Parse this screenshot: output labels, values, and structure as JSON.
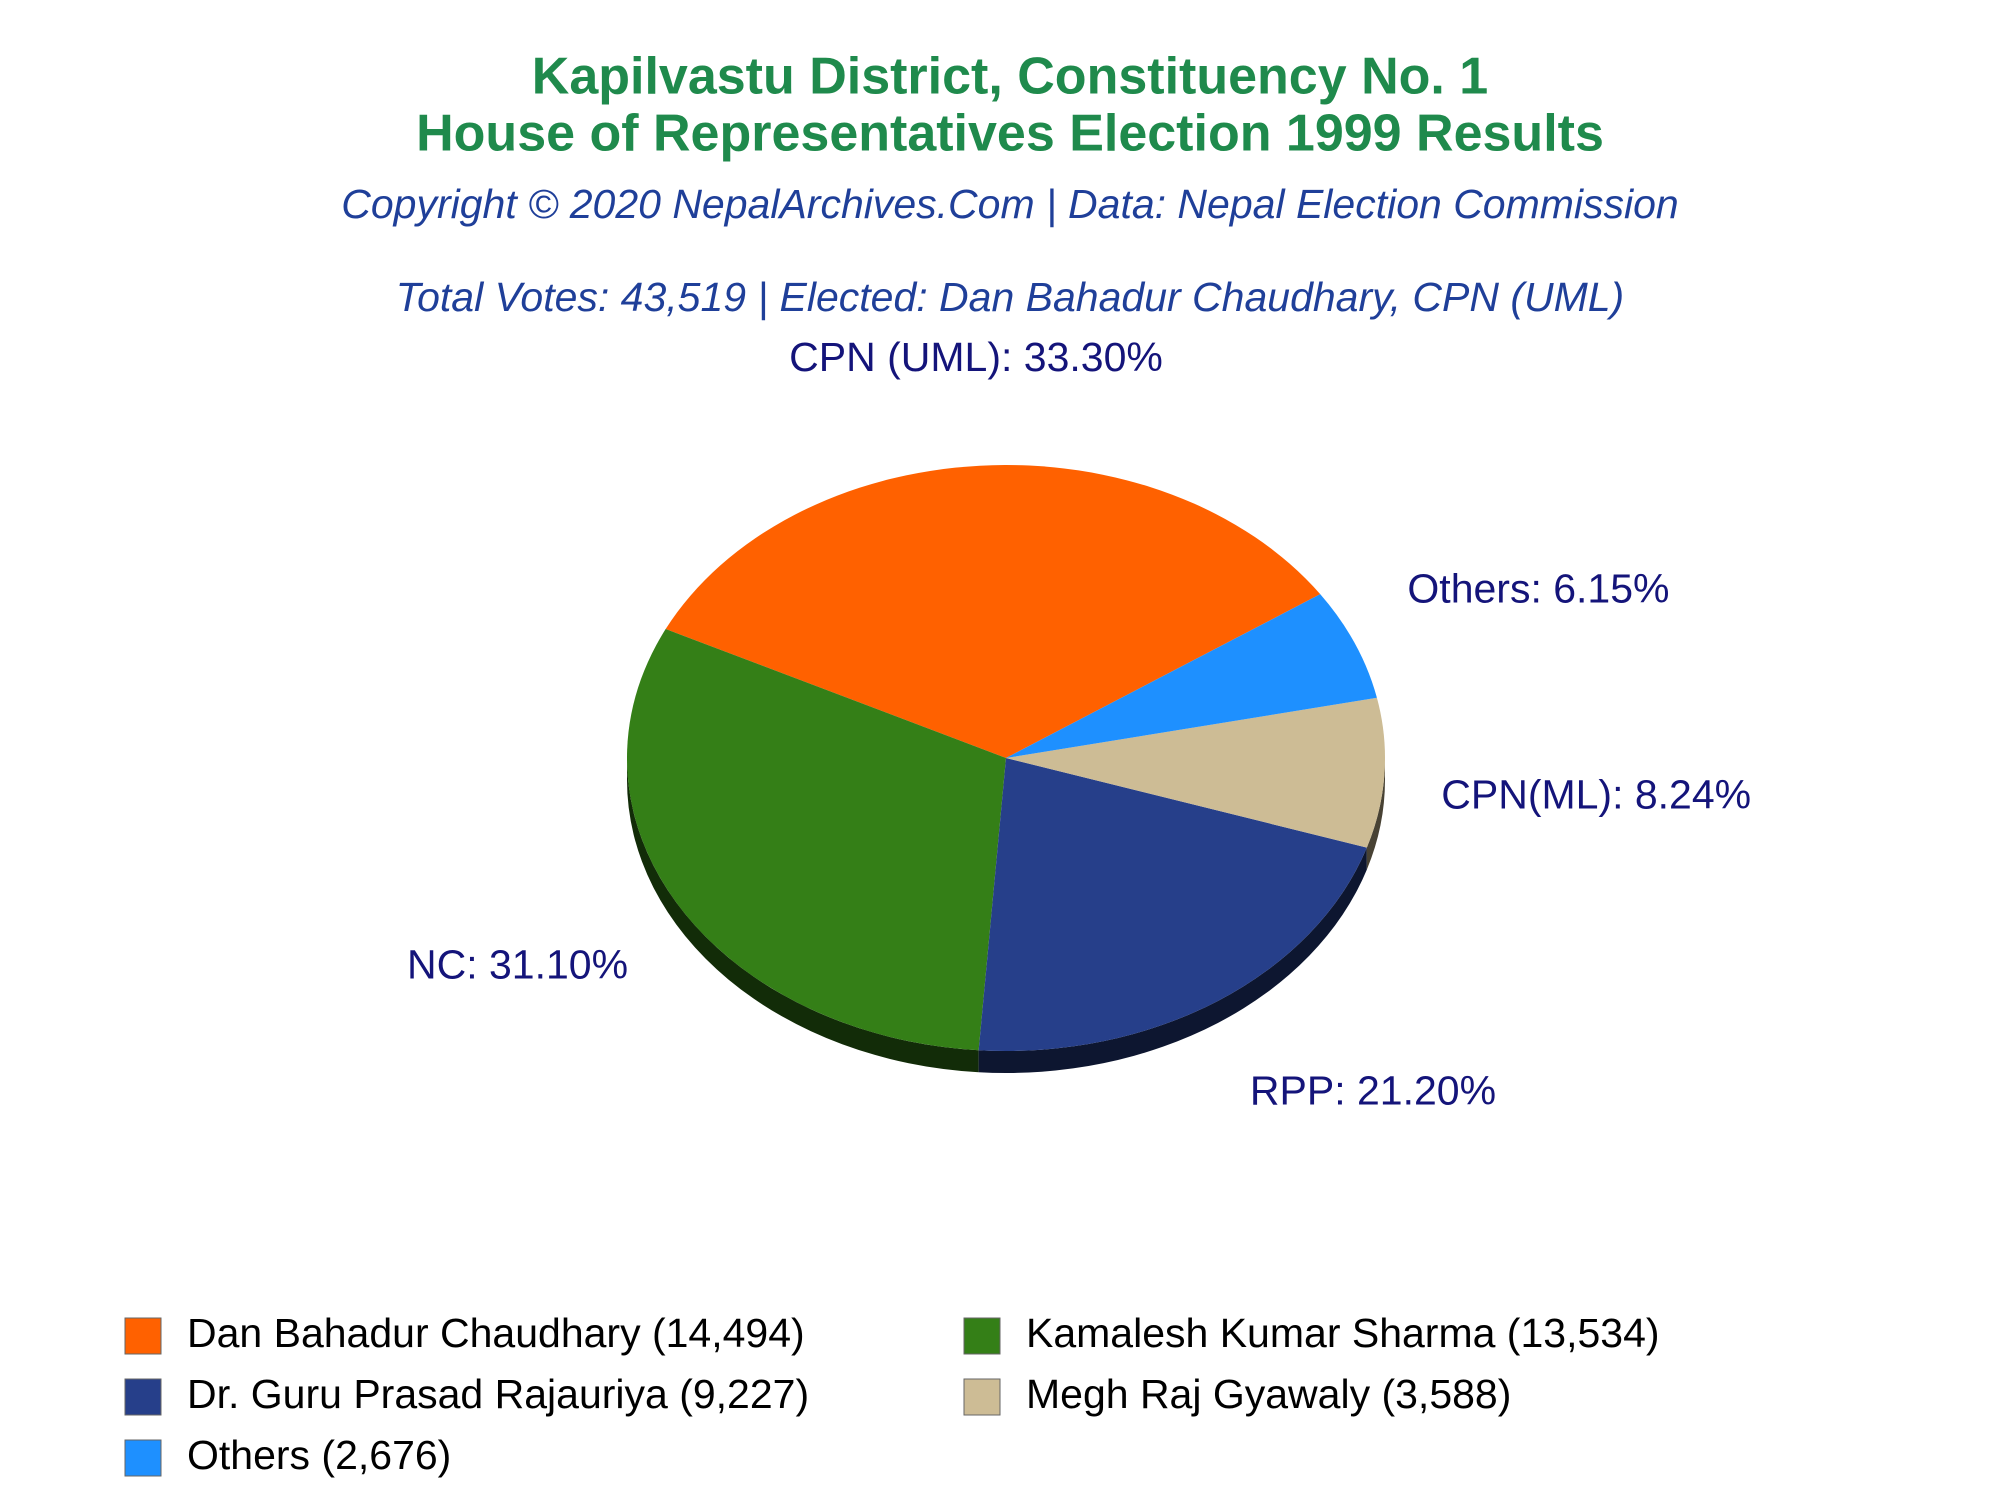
{
  "chart_data": {
    "type": "pie",
    "title": [
      "Kapilvastu District, Constituency No. 1",
      "House of Representatives Election 1999 Results"
    ],
    "subtitle": "Copyright © 2020 NepalArchives.Com | Data: Nepal Election Commission",
    "annotation": "Total Votes: 43,519 | Elected: Dan Bahadur Chaudhary, CPN (UML)",
    "categories": [
      "Dan Bahadur Chaudhary (14,494)",
      "Kamalesh Kumar Sharma (13,534)",
      "Dr. Guru Prasad Rajauriya (9,227)",
      "Megh Raj Gyawaly (3,588)",
      "Others (2,676)"
    ],
    "values": [
      33.3,
      31.1,
      21.2,
      8.24,
      6.15
    ],
    "value_labels": [
      "CPN (UML): 33.30%",
      "NC: 31.10%",
      "RPP: 21.20%",
      "CPN(ML): 8.24%",
      "Others: 6.15%"
    ],
    "colors": [
      "#ff6100",
      "#347f17",
      "#263f8a",
      "#cdbc95",
      "#1e90ff"
    ],
    "legend": "bottom"
  }
}
